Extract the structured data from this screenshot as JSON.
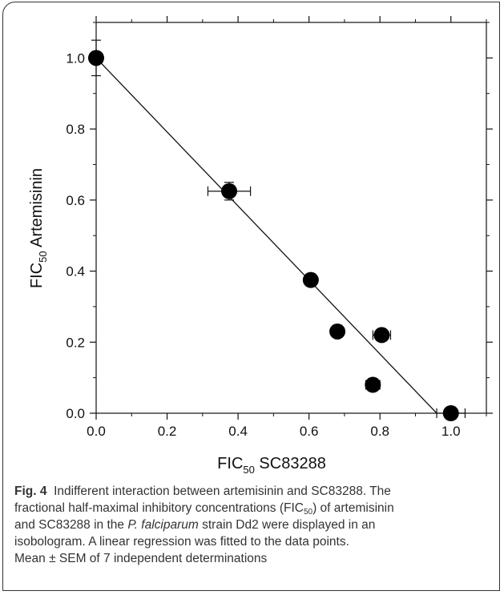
{
  "chart_data": {
    "type": "scatter",
    "xlabel_main": "FIC",
    "xlabel_sub": "50",
    "xlabel_rest": " SC83288",
    "ylabel_main": "FIC",
    "ylabel_sub": "50",
    "ylabel_rest": " Artemisinin",
    "xlim": [
      0,
      1.1
    ],
    "ylim": [
      0,
      1.1
    ],
    "x_ticks": [
      "0.0",
      "0.2",
      "0.4",
      "0.6",
      "0.8",
      "1.0"
    ],
    "y_ticks": [
      "0.0",
      "0.2",
      "0.4",
      "0.6",
      "0.8",
      "1.0"
    ],
    "points": [
      {
        "x": 0.0,
        "y": 1.0,
        "xerr": 0.0,
        "yerr": 0.05
      },
      {
        "x": 0.375,
        "y": 0.625,
        "xerr": 0.06,
        "yerr": 0.025
      },
      {
        "x": 0.605,
        "y": 0.375,
        "xerr": 0.0,
        "yerr": 0.0
      },
      {
        "x": 0.68,
        "y": 0.23,
        "xerr": 0.0,
        "yerr": 0.0
      },
      {
        "x": 0.805,
        "y": 0.22,
        "xerr": 0.025,
        "yerr": 0.0
      },
      {
        "x": 0.78,
        "y": 0.08,
        "xerr": 0.02,
        "yerr": 0.0
      },
      {
        "x": 1.0,
        "y": 0.0,
        "xerr": 0.04,
        "yerr": 0.0
      }
    ],
    "regression": {
      "x": [
        0.0,
        0.96
      ],
      "y": [
        1.0,
        0.0
      ]
    },
    "grid": false
  },
  "caption": {
    "label": "Fig. 4",
    "line1": "Indifferent interaction between artemisinin and SC83288. The",
    "line2a": "fractional half-maximal inhibitory concentrations (FIC",
    "line2sub": "50",
    "line2b": ") of artemisinin",
    "line3a": "and SC83288 in the ",
    "line3em": "P. falciparum",
    "line3b": " strain Dd2 were displayed in an",
    "line4": "isobologram. A linear regression was fitted to the data points.",
    "line5": "Mean ± SEM of 7 independent determinations"
  }
}
